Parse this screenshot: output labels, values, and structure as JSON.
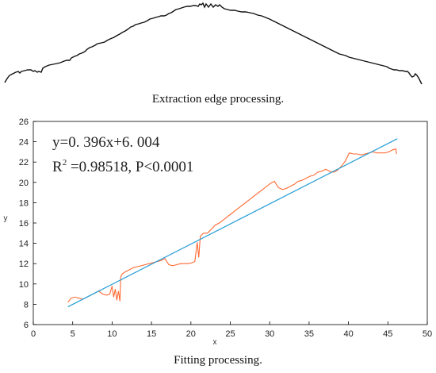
{
  "edge_panel": {
    "caption": "Extraction edge processing."
  },
  "fit_panel": {
    "caption": "Fitting processing.",
    "equation": "y=0. 396x+6. 004",
    "r2_prefix": "R",
    "r2_superscript": "2",
    "r2_rest": " =0.98518, P<0.0001"
  },
  "chart_data": {
    "type": "line",
    "xlabel": "x",
    "ylabel": "y",
    "xlim": [
      0,
      50
    ],
    "ylim": [
      6,
      26
    ],
    "xticks": [
      0,
      5,
      10,
      15,
      20,
      25,
      30,
      35,
      40,
      45,
      50
    ],
    "yticks": [
      6,
      8,
      10,
      12,
      14,
      16,
      18,
      20,
      22,
      24,
      26
    ],
    "grid": false,
    "series": [
      {
        "role": "data",
        "color": "#ff6a33",
        "x": [
          4.4,
          4.8,
          5.3,
          5.8,
          6.3,
          6.8,
          7.3,
          7.8,
          8.3,
          8.8,
          9.3,
          9.7,
          10.0,
          10.2,
          10.4,
          10.6,
          10.8,
          11.0,
          11.1,
          11.3,
          11.7,
          12.2,
          12.7,
          13.2,
          13.7,
          14.2,
          14.7,
          15.2,
          15.7,
          16.2,
          16.7,
          17.2,
          17.7,
          18.2,
          18.7,
          19.2,
          19.7,
          20.2,
          20.5,
          20.8,
          21.0,
          21.2,
          21.6,
          22.1,
          22.6,
          23.1,
          23.6,
          24.1,
          24.6,
          25.1,
          25.6,
          26.1,
          26.6,
          27.1,
          27.6,
          28.1,
          28.6,
          29.1,
          29.6,
          30.1,
          30.6,
          31.1,
          31.6,
          32.1,
          32.6,
          33.1,
          33.6,
          34.1,
          34.6,
          35.1,
          35.6,
          36.1,
          36.6,
          37.1,
          37.6,
          38.1,
          38.6,
          39.1,
          39.6,
          40.1,
          40.6,
          41.1,
          41.6,
          42.1,
          42.6,
          43.1,
          43.6,
          44.1,
          44.6,
          45.1,
          45.6,
          46.0,
          46.1
        ],
        "y": [
          8.2,
          8.6,
          8.7,
          8.6,
          8.5,
          8.7,
          8.9,
          9.1,
          9.3,
          9.0,
          8.9,
          9.0,
          9.8,
          8.7,
          9.5,
          8.4,
          9.3,
          8.3,
          10.7,
          11.0,
          11.2,
          11.4,
          11.6,
          11.7,
          11.8,
          11.9,
          12.0,
          12.1,
          12.2,
          12.3,
          12.5,
          11.9,
          11.8,
          11.9,
          12.0,
          12.0,
          12.0,
          12.1,
          12.2,
          14.1,
          12.6,
          14.7,
          15.0,
          15.0,
          15.4,
          15.8,
          16.0,
          16.3,
          16.6,
          16.9,
          17.2,
          17.5,
          17.8,
          18.1,
          18.4,
          18.7,
          19.0,
          19.3,
          19.6,
          19.9,
          20.1,
          19.5,
          19.3,
          19.4,
          19.6,
          19.8,
          20.1,
          20.2,
          20.4,
          20.6,
          20.7,
          21.0,
          21.1,
          21.3,
          21.1,
          21.0,
          21.2,
          21.6,
          22.1,
          22.9,
          22.8,
          22.8,
          22.7,
          22.8,
          22.9,
          23.0,
          22.9,
          22.9,
          22.9,
          23.0,
          23.2,
          23.3,
          22.8
        ]
      },
      {
        "role": "fit",
        "color": "#2a9fd6",
        "x": [
          4.4,
          46.2
        ],
        "y": [
          7.75,
          24.3
        ]
      }
    ]
  }
}
